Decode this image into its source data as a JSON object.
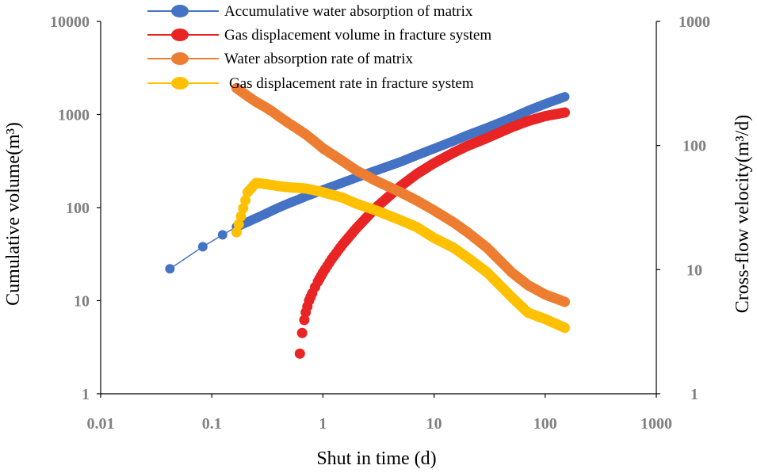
{
  "chart_data": {
    "type": "scatter",
    "x_scale": "log",
    "y_scale": "log",
    "xlabel": "Shut in time (d)",
    "ylabel_left": "Cumulative volume(m³)",
    "ylabel_right": "Cross-flow velocity(m³/d)",
    "xlim": [
      0.01,
      1000
    ],
    "ylim_left": [
      1,
      10000
    ],
    "ylim_right": [
      1,
      1000
    ],
    "x_ticks": [
      "0.01",
      "0.1",
      "1",
      "10",
      "100",
      "1000"
    ],
    "y_left_ticks": [
      "1",
      "10",
      "100",
      "1000",
      "10000"
    ],
    "y_right_ticks": [
      "1",
      "10",
      "100",
      "1000"
    ],
    "legend_position": "top-center",
    "series": [
      {
        "name": "Accumulative water absorption of matrix",
        "axis": "left",
        "color": "#4472C4",
        "x": [
          0.042,
          0.083,
          0.125,
          0.167,
          0.21,
          0.25,
          0.3,
          0.35,
          0.4,
          0.5,
          0.6,
          0.7,
          0.8,
          1,
          1.5,
          2,
          3,
          5,
          7,
          10,
          15,
          20,
          30,
          50,
          70,
          100,
          150
        ],
        "y": [
          22,
          38,
          51,
          62,
          70,
          77,
          85,
          93,
          100,
          112,
          122,
          132,
          140,
          155,
          185,
          210,
          250,
          310,
          365,
          430,
          520,
          600,
          720,
          920,
          1100,
          1300,
          1550
        ]
      },
      {
        "name": "Gas displacement volume in fracture system",
        "axis": "left",
        "color": "#E82424",
        "x": [
          0.62,
          0.65,
          0.68,
          0.7,
          0.75,
          0.8,
          0.85,
          0.9,
          1,
          1.2,
          1.5,
          2,
          3,
          5,
          7,
          10,
          15,
          20,
          30,
          50,
          70,
          100,
          150
        ],
        "y": [
          2.7,
          4.5,
          6.2,
          7.5,
          10,
          12,
          14,
          16,
          20,
          28,
          40,
          60,
          100,
          170,
          230,
          300,
          390,
          460,
          560,
          730,
          850,
          960,
          1050
        ]
      },
      {
        "name": "Water absorption rate of matrix",
        "axis": "right",
        "color": "#ED7D31",
        "x": [
          0.167,
          0.21,
          0.25,
          0.3,
          0.35,
          0.4,
          0.5,
          0.6,
          0.7,
          0.8,
          1,
          1.5,
          2,
          3,
          5,
          7,
          10,
          15,
          20,
          30,
          50,
          70,
          100,
          150
        ],
        "y": [
          290,
          250,
          225,
          205,
          188,
          172,
          150,
          135,
          123,
          112,
          95,
          75,
          63,
          52,
          42,
          36,
          30,
          24,
          20,
          15,
          9.5,
          7.5,
          6.3,
          5.5
        ]
      },
      {
        "name": "Gas displacement rate in fracture system",
        "axis": "right",
        "color": "#FFC000",
        "x": [
          0.167,
          0.21,
          0.25,
          0.3,
          0.35,
          0.4,
          0.5,
          0.6,
          0.7,
          0.8,
          1,
          1.5,
          2,
          3,
          5,
          7,
          10,
          15,
          20,
          30,
          50,
          70,
          100,
          150
        ],
        "y": [
          20,
          42,
          50,
          49,
          48,
          47,
          46,
          45.5,
          45,
          44,
          42,
          38,
          34,
          30,
          25,
          22,
          18,
          15,
          12.5,
          9.5,
          6,
          4.5,
          4,
          3.4
        ]
      }
    ]
  }
}
